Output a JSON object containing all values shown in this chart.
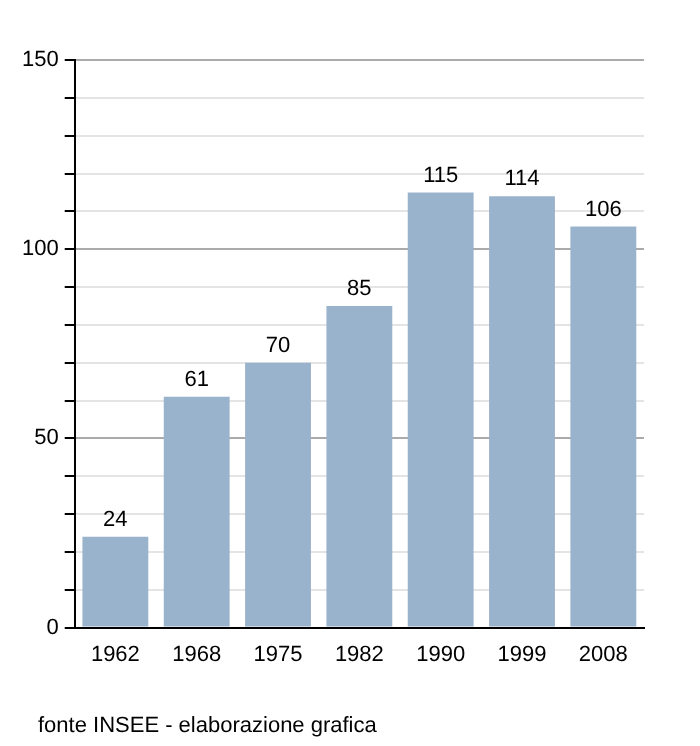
{
  "chart_data": {
    "type": "bar",
    "categories": [
      "1962",
      "1968",
      "1975",
      "1982",
      "1990",
      "1999",
      "2008"
    ],
    "values": [
      24,
      61,
      70,
      85,
      115,
      114,
      106
    ],
    "color": "#9ab3cd",
    "data_labels": true,
    "ylim": [
      0,
      150
    ],
    "yticks": [
      0,
      {
        "value": 10,
        "label": null
      },
      {
        "value": 20,
        "label": null
      },
      {
        "value": 30,
        "label": null
      },
      {
        "value": 40,
        "label": null
      },
      50,
      {
        "value": 60,
        "label": null
      },
      {
        "value": 70,
        "label": null
      },
      {
        "value": 80,
        "label": null
      },
      {
        "value": 90,
        "label": null
      },
      100,
      {
        "value": 110,
        "label": null
      },
      {
        "value": 120,
        "label": null
      },
      {
        "value": 130,
        "label": null
      },
      {
        "value": 140,
        "label": null
      },
      150
    ],
    "grid": "y",
    "legend": false,
    "annotations": [
      "fonte INSEE - elaborazione grafica"
    ]
  }
}
